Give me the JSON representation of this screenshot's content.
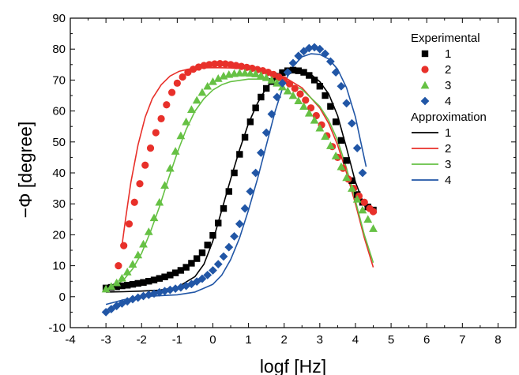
{
  "chart_data": {
    "type": "scatter",
    "xlabel": "logf [Hz]",
    "ylabel": "−Φ [degree]",
    "xlim": [
      -4,
      8.5
    ],
    "ylim": [
      -10,
      90
    ],
    "xticks": [
      -4,
      -3,
      -2,
      -1,
      0,
      1,
      2,
      3,
      4,
      5,
      6,
      7,
      8
    ],
    "yticks": [
      -10,
      0,
      10,
      20,
      30,
      40,
      50,
      60,
      70,
      80,
      90
    ],
    "grid": false,
    "legend_position": "top-right",
    "legend": {
      "experimental_title": "Experimental",
      "approximation_title": "Approximation"
    },
    "colors": {
      "1": "#000000",
      "2": "#e8302a",
      "3": "#66c144",
      "4": "#2156a6"
    },
    "series": [
      {
        "name": "1",
        "group": "Experimental",
        "marker": "square",
        "color": "#000000",
        "points": [
          [
            -3.0,
            2.8
          ],
          [
            -2.85,
            3.0
          ],
          [
            -2.7,
            3.2
          ],
          [
            -2.55,
            3.5
          ],
          [
            -2.4,
            3.7
          ],
          [
            -2.25,
            4.0
          ],
          [
            -2.1,
            4.3
          ],
          [
            -1.95,
            4.6
          ],
          [
            -1.8,
            5.0
          ],
          [
            -1.65,
            5.4
          ],
          [
            -1.5,
            5.9
          ],
          [
            -1.35,
            6.4
          ],
          [
            -1.2,
            7.0
          ],
          [
            -1.05,
            7.7
          ],
          [
            -0.9,
            8.5
          ],
          [
            -0.75,
            9.5
          ],
          [
            -0.6,
            10.8
          ],
          [
            -0.45,
            12.3
          ],
          [
            -0.3,
            14.2
          ],
          [
            -0.15,
            16.7
          ],
          [
            0.0,
            19.8
          ],
          [
            0.15,
            23.8
          ],
          [
            0.3,
            28.5
          ],
          [
            0.45,
            34.0
          ],
          [
            0.6,
            40.0
          ],
          [
            0.75,
            46.0
          ],
          [
            0.9,
            51.5
          ],
          [
            1.05,
            56.5
          ],
          [
            1.2,
            61.0
          ],
          [
            1.35,
            64.5
          ],
          [
            1.5,
            67.3
          ],
          [
            1.65,
            69.5
          ],
          [
            1.8,
            71.2
          ],
          [
            1.95,
            72.4
          ],
          [
            2.1,
            73.0
          ],
          [
            2.25,
            73.2
          ],
          [
            2.4,
            73.0
          ],
          [
            2.55,
            72.5
          ],
          [
            2.7,
            71.5
          ],
          [
            2.85,
            70.0
          ],
          [
            3.0,
            68.0
          ],
          [
            3.15,
            65.0
          ],
          [
            3.3,
            61.5
          ],
          [
            3.45,
            56.5
          ],
          [
            3.6,
            50.5
          ],
          [
            3.75,
            44.0
          ],
          [
            3.9,
            37.5
          ],
          [
            4.05,
            33.0
          ],
          [
            4.2,
            30.5
          ],
          [
            4.35,
            29.0
          ],
          [
            4.5,
            28.0
          ]
        ]
      },
      {
        "name": "2",
        "group": "Experimental",
        "marker": "circle",
        "color": "#e8302a",
        "points": [
          [
            -2.65,
            10.0
          ],
          [
            -2.5,
            16.5
          ],
          [
            -2.35,
            23.5
          ],
          [
            -2.2,
            30.5
          ],
          [
            -2.05,
            36.5
          ],
          [
            -1.9,
            42.5
          ],
          [
            -1.75,
            48.0
          ],
          [
            -1.6,
            53.0
          ],
          [
            -1.45,
            57.5
          ],
          [
            -1.3,
            62.0
          ],
          [
            -1.15,
            66.0
          ],
          [
            -1.0,
            69.0
          ],
          [
            -0.85,
            71.0
          ],
          [
            -0.7,
            72.5
          ],
          [
            -0.55,
            73.5
          ],
          [
            -0.4,
            74.2
          ],
          [
            -0.25,
            74.7
          ],
          [
            -0.1,
            75.0
          ],
          [
            0.05,
            75.2
          ],
          [
            0.2,
            75.3
          ],
          [
            0.35,
            75.2
          ],
          [
            0.5,
            75.0
          ],
          [
            0.65,
            74.7
          ],
          [
            0.8,
            74.4
          ],
          [
            0.95,
            74.1
          ],
          [
            1.1,
            73.8
          ],
          [
            1.25,
            73.4
          ],
          [
            1.4,
            73.0
          ],
          [
            1.55,
            72.5
          ],
          [
            1.7,
            71.8
          ],
          [
            1.85,
            71.0
          ],
          [
            2.0,
            70.0
          ],
          [
            2.15,
            68.8
          ],
          [
            2.3,
            67.3
          ],
          [
            2.45,
            65.5
          ],
          [
            2.6,
            63.5
          ],
          [
            2.75,
            61.0
          ],
          [
            2.9,
            58.5
          ],
          [
            3.05,
            55.5
          ],
          [
            3.2,
            52.0
          ],
          [
            3.35,
            48.5
          ],
          [
            3.5,
            45.0
          ],
          [
            3.65,
            41.5
          ],
          [
            3.8,
            38.0
          ],
          [
            3.95,
            35.0
          ],
          [
            4.1,
            32.5
          ],
          [
            4.25,
            30.5
          ],
          [
            4.4,
            28.5
          ],
          [
            4.5,
            27.5
          ]
        ]
      },
      {
        "name": "3",
        "group": "Experimental",
        "marker": "triangle",
        "color": "#66c144",
        "points": [
          [
            -3.0,
            2.5
          ],
          [
            -2.85,
            3.3
          ],
          [
            -2.7,
            4.5
          ],
          [
            -2.55,
            6.0
          ],
          [
            -2.4,
            8.0
          ],
          [
            -2.25,
            10.5
          ],
          [
            -2.1,
            13.5
          ],
          [
            -1.95,
            17.0
          ],
          [
            -1.8,
            21.0
          ],
          [
            -1.65,
            25.5
          ],
          [
            -1.5,
            30.5
          ],
          [
            -1.35,
            36.0
          ],
          [
            -1.2,
            41.5
          ],
          [
            -1.05,
            47.0
          ],
          [
            -0.9,
            52.0
          ],
          [
            -0.75,
            56.5
          ],
          [
            -0.6,
            60.5
          ],
          [
            -0.45,
            63.5
          ],
          [
            -0.3,
            66.0
          ],
          [
            -0.15,
            68.0
          ],
          [
            0.0,
            69.5
          ],
          [
            0.15,
            70.5
          ],
          [
            0.3,
            71.3
          ],
          [
            0.45,
            71.8
          ],
          [
            0.6,
            72.1
          ],
          [
            0.75,
            72.3
          ],
          [
            0.9,
            72.3
          ],
          [
            1.05,
            72.2
          ],
          [
            1.2,
            72.0
          ],
          [
            1.35,
            71.5
          ],
          [
            1.5,
            70.8
          ],
          [
            1.65,
            70.0
          ],
          [
            1.8,
            69.0
          ],
          [
            1.95,
            67.8
          ],
          [
            2.1,
            66.5
          ],
          [
            2.25,
            65.0
          ],
          [
            2.4,
            63.3
          ],
          [
            2.55,
            61.5
          ],
          [
            2.7,
            59.3
          ],
          [
            2.85,
            57.0
          ],
          [
            3.0,
            54.5
          ],
          [
            3.15,
            51.8
          ],
          [
            3.3,
            48.8
          ],
          [
            3.45,
            45.5
          ],
          [
            3.6,
            42.0
          ],
          [
            3.75,
            38.5
          ],
          [
            3.9,
            35.0
          ],
          [
            4.05,
            31.5
          ],
          [
            4.2,
            28.0
          ],
          [
            4.35,
            25.0
          ],
          [
            4.5,
            22.0
          ]
        ]
      },
      {
        "name": "4",
        "group": "Experimental",
        "marker": "diamond",
        "color": "#2156a6",
        "points": [
          [
            -3.0,
            -5.0
          ],
          [
            -2.85,
            -4.0
          ],
          [
            -2.7,
            -3.0
          ],
          [
            -2.55,
            -2.2
          ],
          [
            -2.4,
            -1.5
          ],
          [
            -2.25,
            -0.8
          ],
          [
            -2.1,
            -0.3
          ],
          [
            -1.95,
            0.2
          ],
          [
            -1.8,
            0.6
          ],
          [
            -1.65,
            1.0
          ],
          [
            -1.5,
            1.4
          ],
          [
            -1.35,
            1.8
          ],
          [
            -1.2,
            2.2
          ],
          [
            -1.05,
            2.6
          ],
          [
            -0.9,
            3.0
          ],
          [
            -0.75,
            3.5
          ],
          [
            -0.6,
            4.1
          ],
          [
            -0.45,
            4.9
          ],
          [
            -0.3,
            5.8
          ],
          [
            -0.15,
            7.0
          ],
          [
            0.0,
            8.5
          ],
          [
            0.15,
            10.5
          ],
          [
            0.3,
            13.0
          ],
          [
            0.45,
            16.0
          ],
          [
            0.6,
            19.5
          ],
          [
            0.75,
            23.5
          ],
          [
            0.9,
            28.5
          ],
          [
            1.05,
            34.0
          ],
          [
            1.2,
            40.0
          ],
          [
            1.35,
            46.5
          ],
          [
            1.5,
            53.0
          ],
          [
            1.65,
            59.0
          ],
          [
            1.8,
            64.5
          ],
          [
            1.95,
            69.0
          ],
          [
            2.1,
            72.5
          ],
          [
            2.25,
            75.5
          ],
          [
            2.4,
            77.8
          ],
          [
            2.55,
            79.3
          ],
          [
            2.7,
            80.3
          ],
          [
            2.85,
            80.6
          ],
          [
            3.0,
            80.0
          ],
          [
            3.15,
            78.5
          ],
          [
            3.3,
            76.0
          ],
          [
            3.45,
            72.5
          ],
          [
            3.6,
            68.0
          ],
          [
            3.75,
            62.5
          ],
          [
            3.9,
            56.0
          ],
          [
            4.05,
            48.0
          ],
          [
            4.2,
            40.0
          ]
        ]
      },
      {
        "name": "1",
        "group": "Approximation",
        "marker": "line",
        "color": "#000000",
        "points": [
          [
            -3.0,
            1.5
          ],
          [
            -2.5,
            1.6
          ],
          [
            -2.0,
            1.8
          ],
          [
            -1.5,
            2.1
          ],
          [
            -1.0,
            3.0
          ],
          [
            -0.5,
            6.5
          ],
          [
            -0.25,
            10.5
          ],
          [
            0.0,
            18.0
          ],
          [
            0.25,
            28.0
          ],
          [
            0.5,
            38.0
          ],
          [
            0.75,
            47.5
          ],
          [
            1.0,
            56.0
          ],
          [
            1.25,
            62.5
          ],
          [
            1.5,
            67.5
          ],
          [
            1.75,
            70.8
          ],
          [
            2.0,
            72.6
          ],
          [
            2.25,
            73.3
          ],
          [
            2.5,
            73.0
          ],
          [
            2.75,
            71.8
          ],
          [
            3.0,
            69.5
          ],
          [
            3.25,
            65.5
          ],
          [
            3.5,
            58.5
          ],
          [
            3.75,
            48.0
          ],
          [
            4.0,
            37.0
          ],
          [
            4.25,
            29.5
          ],
          [
            4.4,
            27.5
          ]
        ]
      },
      {
        "name": "2",
        "group": "Approximation",
        "marker": "line",
        "color": "#e8302a",
        "points": [
          [
            -2.55,
            16.5
          ],
          [
            -2.45,
            25.0
          ],
          [
            -2.3,
            37.0
          ],
          [
            -2.1,
            49.0
          ],
          [
            -1.9,
            58.0
          ],
          [
            -1.7,
            64.0
          ],
          [
            -1.45,
            68.5
          ],
          [
            -1.2,
            71.3
          ],
          [
            -0.95,
            72.8
          ],
          [
            -0.7,
            73.5
          ],
          [
            -0.4,
            73.9
          ],
          [
            0.0,
            74.0
          ],
          [
            0.5,
            73.9
          ],
          [
            1.0,
            73.6
          ],
          [
            1.5,
            72.8
          ],
          [
            2.0,
            71.0
          ],
          [
            2.5,
            67.5
          ],
          [
            3.0,
            61.0
          ],
          [
            3.25,
            56.0
          ],
          [
            3.5,
            49.0
          ],
          [
            3.75,
            40.0
          ],
          [
            4.0,
            30.0
          ],
          [
            4.25,
            19.0
          ],
          [
            4.5,
            9.5
          ]
        ]
      },
      {
        "name": "3",
        "group": "Approximation",
        "marker": "line",
        "color": "#66c144",
        "points": [
          [
            -3.0,
            2.5
          ],
          [
            -2.75,
            3.5
          ],
          [
            -2.5,
            5.5
          ],
          [
            -2.25,
            9.0
          ],
          [
            -2.0,
            14.0
          ],
          [
            -1.75,
            21.0
          ],
          [
            -1.5,
            29.0
          ],
          [
            -1.25,
            38.0
          ],
          [
            -1.0,
            46.5
          ],
          [
            -0.75,
            54.0
          ],
          [
            -0.5,
            60.0
          ],
          [
            -0.25,
            64.0
          ],
          [
            0.0,
            66.8
          ],
          [
            0.25,
            68.5
          ],
          [
            0.5,
            69.5
          ],
          [
            1.0,
            70.3
          ],
          [
            1.5,
            70.3
          ],
          [
            2.0,
            69.5
          ],
          [
            2.5,
            67.0
          ],
          [
            3.0,
            61.5
          ],
          [
            3.25,
            57.0
          ],
          [
            3.5,
            50.5
          ],
          [
            3.75,
            41.5
          ],
          [
            4.0,
            31.0
          ],
          [
            4.25,
            20.0
          ],
          [
            4.5,
            11.0
          ]
        ]
      },
      {
        "name": "4",
        "group": "Approximation",
        "marker": "line",
        "color": "#2156a6",
        "points": [
          [
            -3.0,
            -2.5
          ],
          [
            -2.5,
            -1.0
          ],
          [
            -2.0,
            0.0
          ],
          [
            -1.5,
            0.3
          ],
          [
            -1.0,
            0.6
          ],
          [
            -0.5,
            1.5
          ],
          [
            0.0,
            4.0
          ],
          [
            0.25,
            7.0
          ],
          [
            0.5,
            12.0
          ],
          [
            0.75,
            19.0
          ],
          [
            1.0,
            28.0
          ],
          [
            1.25,
            38.0
          ],
          [
            1.5,
            49.0
          ],
          [
            1.75,
            60.0
          ],
          [
            2.0,
            69.0
          ],
          [
            2.25,
            74.5
          ],
          [
            2.5,
            77.5
          ],
          [
            2.75,
            78.5
          ],
          [
            3.0,
            78.3
          ],
          [
            3.25,
            76.8
          ],
          [
            3.5,
            73.5
          ],
          [
            3.75,
            67.5
          ],
          [
            4.0,
            58.0
          ],
          [
            4.15,
            50.0
          ],
          [
            4.3,
            42.0
          ]
        ]
      }
    ]
  }
}
